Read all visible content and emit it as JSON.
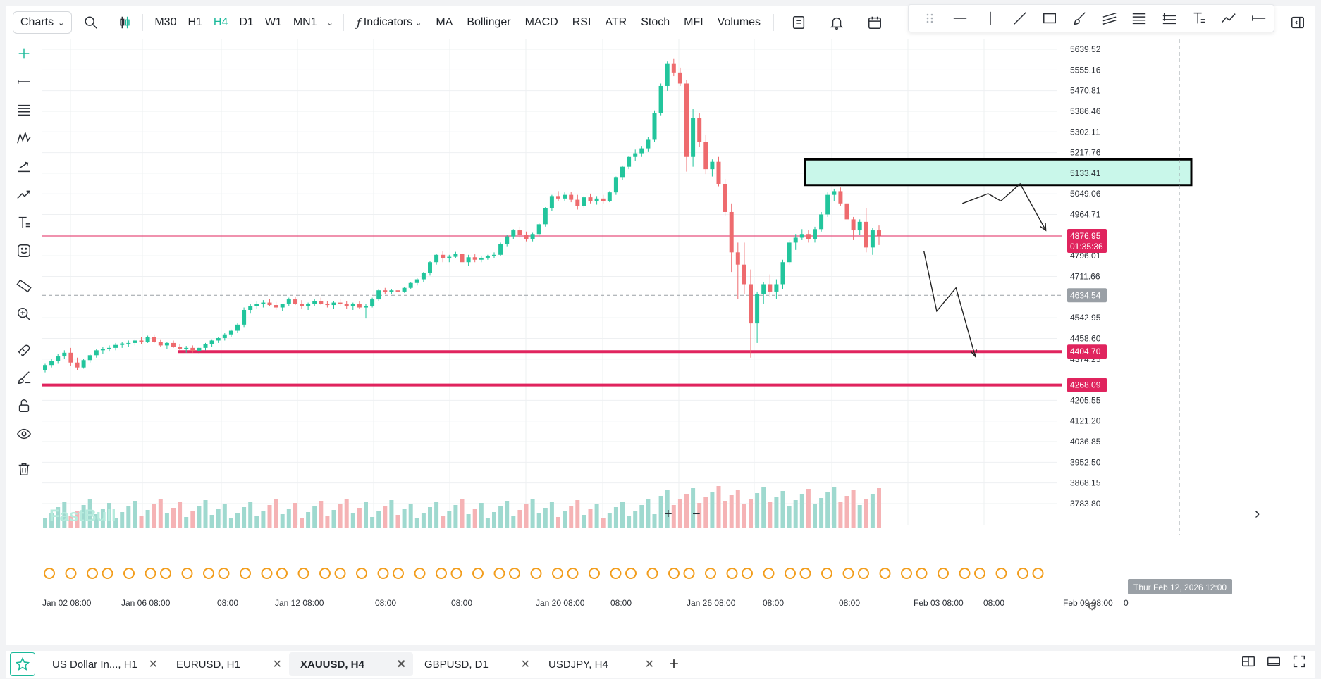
{
  "toolbar": {
    "charts_label": "Charts",
    "timeframes": [
      {
        "label": "M30",
        "active": false
      },
      {
        "label": "H1",
        "active": false
      },
      {
        "label": "H4",
        "active": true
      },
      {
        "label": "D1",
        "active": false
      },
      {
        "label": "W1",
        "active": false
      },
      {
        "label": "MN1",
        "active": false
      }
    ],
    "indicators_label": "Indicators",
    "indicators": [
      "MA",
      "Bollinger",
      "MACD",
      "RSI",
      "ATR",
      "Stoch",
      "MFI",
      "Volumes"
    ],
    "icons": [
      "search-icon",
      "candle-type-icon",
      "template-icon",
      "alert-icon",
      "calendar-icon",
      "undo-icon",
      "redo-icon",
      "replay-icon",
      "collapse-panel-icon"
    ]
  },
  "drawing_toolbar": {
    "tools": [
      "drag-handle-icon",
      "horizontal-line-icon",
      "vertical-line-icon",
      "trend-line-icon",
      "rectangle-icon",
      "brush-icon",
      "parallel-channel-icon",
      "fib-retracement-icon",
      "fib-extension-icon",
      "text-tool-icon",
      "polyline-icon",
      "ray-icon"
    ]
  },
  "left_toolbar": {
    "tools": [
      "crosshair-icon",
      "line-tool-icon",
      "fibonacci-icon",
      "pattern-icon",
      "projection-icon",
      "forecast-icon",
      "text-icon",
      "emoji-icon",
      "ruler-icon",
      "zoom-in-icon",
      "magnet-icon",
      "eraser-brush-icon",
      "lock-icon",
      "visibility-icon",
      "trash-icon"
    ]
  },
  "colors": {
    "up": "#26a69a",
    "down": "#ef5350",
    "up_candle": "#22c59c",
    "down_candle": "#ee6b6e",
    "level_line": "#e0245e",
    "price_line": "#e0245e",
    "zone_fill": "#c9f7ea",
    "accent": "#1bb99a"
  },
  "chart_data": {
    "type": "candlestick",
    "symbol": "XAUUSD",
    "timeframe": "H4",
    "watermark": "FastBull",
    "ylim": [
      3740,
      5700
    ],
    "y_ticks": [
      "5639.52",
      "5555.16",
      "5470.81",
      "5386.46",
      "5302.11",
      "5217.76",
      "5133.41",
      "5049.06",
      "4964.71",
      "4796.01",
      "4711.66",
      "4542.95",
      "4458.60",
      "4374.25",
      "4205.55",
      "4121.20",
      "4036.85",
      "3952.50",
      "3868.15",
      "3783.80"
    ],
    "x_tick_labels": [
      "Jan 02 08:00",
      "Jan 06 08:00",
      "08:00",
      "Jan 12 08:00",
      "08:00",
      "08:00",
      "Jan 20 08:00",
      "08:00",
      "Jan 26 08:00",
      "08:00",
      "08:00",
      "Feb 03 08:00",
      "08:00",
      "Feb 09 08:00",
      "0"
    ],
    "crosshair_time_label": "Thur Feb 12, 2026 12:00",
    "crosshair_price_label": "4634.54",
    "current_price": {
      "price_label": "4876.95",
      "countdown": "01:35:36",
      "value": 4876.95
    },
    "horizontal_levels": [
      {
        "value": 4404.7,
        "label": "4404.70"
      },
      {
        "value": 4268.09,
        "label": "4268.09"
      }
    ],
    "zone": {
      "top": 5190,
      "bottom": 5085
    },
    "candles": [
      [
        4330,
        4355,
        4320,
        4350
      ],
      [
        4350,
        4375,
        4340,
        4365
      ],
      [
        4365,
        4395,
        4355,
        4385
      ],
      [
        4385,
        4410,
        4375,
        4400
      ],
      [
        4400,
        4420,
        4345,
        4360
      ],
      [
        4360,
        4380,
        4330,
        4340
      ],
      [
        4340,
        4375,
        4335,
        4370
      ],
      [
        4370,
        4395,
        4360,
        4390
      ],
      [
        4390,
        4415,
        4380,
        4410
      ],
      [
        4410,
        4425,
        4395,
        4415
      ],
      [
        4415,
        4430,
        4405,
        4420
      ],
      [
        4420,
        4440,
        4410,
        4432
      ],
      [
        4432,
        4445,
        4420,
        4438
      ],
      [
        4438,
        4450,
        4425,
        4440
      ],
      [
        4440,
        4455,
        4430,
        4450
      ],
      [
        4450,
        4465,
        4435,
        4445
      ],
      [
        4445,
        4470,
        4440,
        4465
      ],
      [
        4465,
        4475,
        4440,
        4445
      ],
      [
        4445,
        4455,
        4425,
        4430
      ],
      [
        4430,
        4445,
        4415,
        4440
      ],
      [
        4440,
        4450,
        4420,
        4425
      ],
      [
        4425,
        4435,
        4405,
        4415
      ],
      [
        4415,
        4428,
        4400,
        4420
      ],
      [
        4420,
        4430,
        4400,
        4408
      ],
      [
        4408,
        4425,
        4395,
        4420
      ],
      [
        4420,
        4440,
        4410,
        4435
      ],
      [
        4435,
        4455,
        4425,
        4450
      ],
      [
        4450,
        4465,
        4440,
        4460
      ],
      [
        4460,
        4480,
        4450,
        4475
      ],
      [
        4475,
        4495,
        4465,
        4490
      ],
      [
        4490,
        4520,
        4480,
        4515
      ],
      [
        4515,
        4585,
        4505,
        4575
      ],
      [
        4575,
        4600,
        4560,
        4590
      ],
      [
        4590,
        4610,
        4580,
        4600
      ],
      [
        4600,
        4615,
        4585,
        4605
      ],
      [
        4605,
        4620,
        4590,
        4595
      ],
      [
        4595,
        4608,
        4575,
        4585
      ],
      [
        4585,
        4600,
        4570,
        4598
      ],
      [
        4598,
        4625,
        4590,
        4618
      ],
      [
        4618,
        4630,
        4595,
        4600
      ],
      [
        4600,
        4615,
        4580,
        4590
      ],
      [
        4590,
        4605,
        4575,
        4598
      ],
      [
        4598,
        4620,
        4590,
        4612
      ],
      [
        4612,
        4625,
        4595,
        4600
      ],
      [
        4600,
        4612,
        4585,
        4595
      ],
      [
        4595,
        4610,
        4580,
        4605
      ],
      [
        4605,
        4618,
        4590,
        4598
      ],
      [
        4598,
        4610,
        4580,
        4590
      ],
      [
        4590,
        4605,
        4575,
        4600
      ],
      [
        4600,
        4612,
        4580,
        4585
      ],
      [
        4585,
        4598,
        4540,
        4592
      ],
      [
        4592,
        4625,
        4585,
        4618
      ],
      [
        4618,
        4660,
        4610,
        4655
      ],
      [
        4655,
        4665,
        4640,
        4648
      ],
      [
        4648,
        4660,
        4640,
        4655
      ],
      [
        4655,
        4665,
        4645,
        4650
      ],
      [
        4650,
        4670,
        4645,
        4665
      ],
      [
        4665,
        4690,
        4660,
        4685
      ],
      [
        4685,
        4705,
        4675,
        4700
      ],
      [
        4700,
        4730,
        4690,
        4725
      ],
      [
        4725,
        4775,
        4715,
        4770
      ],
      [
        4770,
        4805,
        4760,
        4800
      ],
      [
        4800,
        4815,
        4770,
        4785
      ],
      [
        4785,
        4800,
        4770,
        4792
      ],
      [
        4792,
        4812,
        4785,
        4805
      ],
      [
        4805,
        4815,
        4755,
        4770
      ],
      [
        4770,
        4800,
        4755,
        4790
      ],
      [
        4790,
        4802,
        4770,
        4780
      ],
      [
        4780,
        4795,
        4770,
        4788
      ],
      [
        4788,
        4800,
        4780,
        4795
      ],
      [
        4795,
        4810,
        4785,
        4800
      ],
      [
        4800,
        4850,
        4795,
        4845
      ],
      [
        4845,
        4880,
        4835,
        4875
      ],
      [
        4875,
        4905,
        4865,
        4900
      ],
      [
        4900,
        4915,
        4870,
        4880
      ],
      [
        4880,
        4895,
        4855,
        4865
      ],
      [
        4865,
        4890,
        4855,
        4885
      ],
      [
        4885,
        4930,
        4875,
        4925
      ],
      [
        4925,
        4995,
        4915,
        4990
      ],
      [
        4990,
        5045,
        4980,
        5040
      ],
      [
        5040,
        5060,
        5020,
        5030
      ],
      [
        5030,
        5055,
        5020,
        5045
      ],
      [
        5045,
        5058,
        5015,
        5025
      ],
      [
        5025,
        5045,
        4985,
        5000
      ],
      [
        5000,
        5040,
        4990,
        5035
      ],
      [
        5035,
        5050,
        5010,
        5020
      ],
      [
        5020,
        5040,
        5005,
        5030
      ],
      [
        5030,
        5045,
        5010,
        5020
      ],
      [
        5020,
        5060,
        5015,
        5055
      ],
      [
        5055,
        5120,
        5045,
        5115
      ],
      [
        5115,
        5165,
        5105,
        5160
      ],
      [
        5160,
        5205,
        5150,
        5200
      ],
      [
        5200,
        5230,
        5185,
        5215
      ],
      [
        5215,
        5245,
        5200,
        5235
      ],
      [
        5235,
        5280,
        5220,
        5270
      ],
      [
        5270,
        5390,
        5260,
        5380
      ],
      [
        5380,
        5500,
        5370,
        5490
      ],
      [
        5490,
        5590,
        5470,
        5580
      ],
      [
        5580,
        5600,
        5530,
        5545
      ],
      [
        5545,
        5565,
        5490,
        5500
      ],
      [
        5500,
        5515,
        5140,
        5200
      ],
      [
        5200,
        5395,
        5160,
        5360
      ],
      [
        5360,
        5380,
        5240,
        5260
      ],
      [
        5260,
        5290,
        5130,
        5150
      ],
      [
        5150,
        5190,
        5120,
        5180
      ],
      [
        5180,
        5200,
        5080,
        5090
      ],
      [
        5090,
        5110,
        4960,
        4975
      ],
      [
        4975,
        5010,
        4730,
        4810
      ],
      [
        4810,
        4850,
        4620,
        4760
      ],
      [
        4760,
        4850,
        4640,
        4680
      ],
      [
        4680,
        4740,
        4380,
        4520
      ],
      [
        4520,
        4650,
        4440,
        4640
      ],
      [
        4640,
        4690,
        4600,
        4680
      ],
      [
        4680,
        4720,
        4630,
        4650
      ],
      [
        4650,
        4700,
        4620,
        4680
      ],
      [
        4680,
        4780,
        4660,
        4770
      ],
      [
        4770,
        4860,
        4760,
        4850
      ],
      [
        4850,
        4885,
        4820,
        4870
      ],
      [
        4870,
        4905,
        4860,
        4885
      ],
      [
        4885,
        4900,
        4850,
        4865
      ],
      [
        4865,
        4915,
        4850,
        4905
      ],
      [
        4905,
        4975,
        4895,
        4965
      ],
      [
        4965,
        5055,
        4955,
        5045
      ],
      [
        5045,
        5070,
        5020,
        5060
      ],
      [
        5060,
        5075,
        5000,
        5010
      ],
      [
        5010,
        5020,
        4930,
        4945
      ],
      [
        4945,
        4955,
        4860,
        4900
      ],
      [
        4900,
        4945,
        4880,
        4935
      ],
      [
        4935,
        4990,
        4810,
        4830
      ],
      [
        4830,
        4910,
        4800,
        4900
      ],
      [
        4900,
        4920,
        4840,
        4878
      ]
    ],
    "annotations": {
      "path_upper": [
        [
          143,
          5010
        ],
        [
          147,
          5050
        ],
        [
          149,
          5020
        ],
        [
          152,
          5090
        ],
        [
          156,
          4900
        ]
      ],
      "path_lower": [
        [
          137,
          4815
        ],
        [
          139,
          4570
        ],
        [
          142,
          4665
        ],
        [
          145,
          4385
        ]
      ]
    }
  },
  "tabs": [
    {
      "label": "US Dollar In..., H1",
      "active": false
    },
    {
      "label": "EURUSD, H1",
      "active": false
    },
    {
      "label": "XAUUSD, H4",
      "active": true
    },
    {
      "label": "GBPUSD, D1",
      "active": false
    },
    {
      "label": "USDJPY, H4",
      "active": false
    }
  ]
}
